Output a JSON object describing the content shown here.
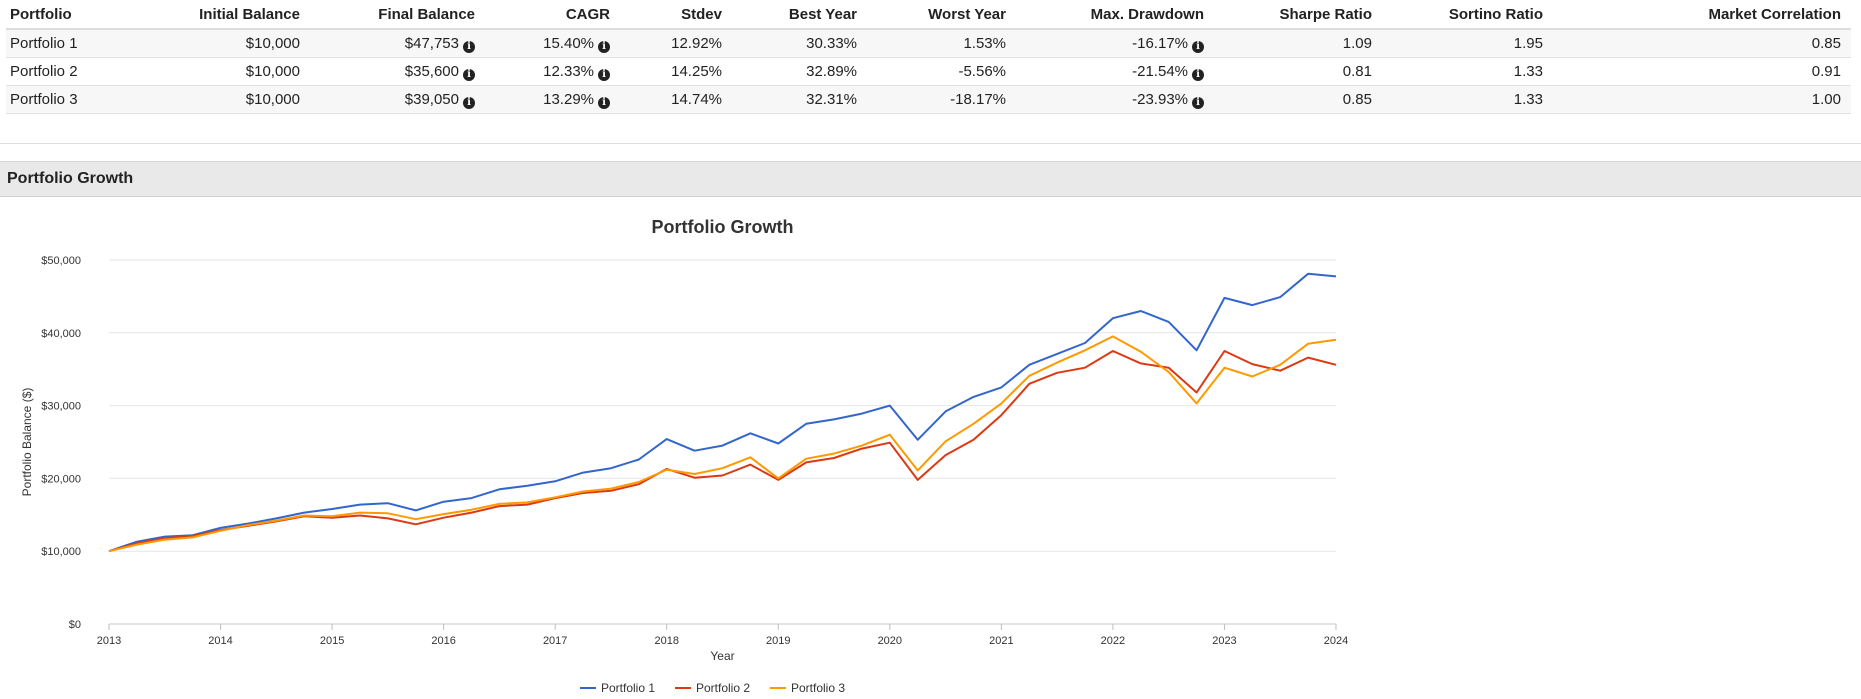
{
  "summary_table": {
    "headers": [
      "Portfolio",
      "Initial Balance",
      "Final Balance",
      "CAGR",
      "Stdev",
      "Best Year",
      "Worst Year",
      "Max. Drawdown",
      "Sharpe Ratio",
      "Sortino Ratio",
      "Market Correlation"
    ],
    "rows": [
      {
        "portfolio": "Portfolio 1",
        "initial_balance": "$10,000",
        "final_balance": "$47,753",
        "cagr": "15.40%",
        "stdev": "12.92%",
        "best_year": "30.33%",
        "worst_year": "1.53%",
        "max_drawdown": "-16.17%",
        "sharpe": "1.09",
        "sortino": "1.95",
        "market_correlation": "0.85"
      },
      {
        "portfolio": "Portfolio 2",
        "initial_balance": "$10,000",
        "final_balance": "$35,600",
        "cagr": "12.33%",
        "stdev": "14.25%",
        "best_year": "32.89%",
        "worst_year": "-5.56%",
        "max_drawdown": "-21.54%",
        "sharpe": "0.81",
        "sortino": "1.33",
        "market_correlation": "0.91"
      },
      {
        "portfolio": "Portfolio 3",
        "initial_balance": "$10,000",
        "final_balance": "$39,050",
        "cagr": "13.29%",
        "stdev": "14.74%",
        "best_year": "32.31%",
        "worst_year": "-18.17%",
        "max_drawdown": "-23.93%",
        "sharpe": "0.85",
        "sortino": "1.33",
        "market_correlation": "1.00"
      }
    ],
    "info_icon": "info-circle-icon"
  },
  "section": {
    "title": "Portfolio Growth"
  },
  "chart_data": {
    "type": "line",
    "title": "Portfolio Growth",
    "xlabel": "Year",
    "ylabel": "Portfolio Balance ($)",
    "x_ticks": [
      "2013",
      "2014",
      "2015",
      "2016",
      "2017",
      "2018",
      "2019",
      "2020",
      "2021",
      "2022",
      "2023",
      "2024"
    ],
    "xlim": [
      2013,
      2024
    ],
    "y_ticks": [
      "$0",
      "$10,000",
      "$20,000",
      "$30,000",
      "$40,000",
      "$50,000"
    ],
    "ylim": [
      0,
      50000
    ],
    "grid": true,
    "legend_position": "bottom-center",
    "series": [
      {
        "name": "Portfolio 1",
        "color": "#3366cc",
        "points": [
          [
            2013.0,
            10000
          ],
          [
            2013.25,
            11300
          ],
          [
            2013.5,
            12000
          ],
          [
            2013.75,
            12200
          ],
          [
            2014.0,
            13200
          ],
          [
            2014.25,
            13800
          ],
          [
            2014.5,
            14500
          ],
          [
            2014.75,
            15300
          ],
          [
            2015.0,
            15800
          ],
          [
            2015.25,
            16400
          ],
          [
            2015.5,
            16600
          ],
          [
            2015.75,
            15600
          ],
          [
            2016.0,
            16800
          ],
          [
            2016.25,
            17300
          ],
          [
            2016.5,
            18500
          ],
          [
            2016.75,
            19000
          ],
          [
            2017.0,
            19600
          ],
          [
            2017.25,
            20800
          ],
          [
            2017.5,
            21400
          ],
          [
            2017.75,
            22600
          ],
          [
            2018.0,
            25400
          ],
          [
            2018.25,
            23800
          ],
          [
            2018.5,
            24500
          ],
          [
            2018.75,
            26200
          ],
          [
            2019.0,
            24800
          ],
          [
            2019.25,
            27500
          ],
          [
            2019.5,
            28100
          ],
          [
            2019.75,
            28900
          ],
          [
            2020.0,
            30000
          ],
          [
            2020.25,
            25300
          ],
          [
            2020.5,
            29200
          ],
          [
            2020.75,
            31200
          ],
          [
            2021.0,
            32500
          ],
          [
            2021.25,
            35600
          ],
          [
            2021.5,
            37100
          ],
          [
            2021.75,
            38600
          ],
          [
            2022.0,
            42000
          ],
          [
            2022.25,
            43000
          ],
          [
            2022.5,
            41500
          ],
          [
            2022.75,
            37600
          ],
          [
            2023.0,
            44800
          ],
          [
            2023.25,
            43800
          ],
          [
            2023.5,
            44900
          ],
          [
            2023.75,
            48100
          ],
          [
            2024.0,
            47753
          ]
        ]
      },
      {
        "name": "Portfolio 2",
        "color": "#dc3912",
        "points": [
          [
            2013.0,
            10000
          ],
          [
            2013.25,
            11100
          ],
          [
            2013.5,
            11800
          ],
          [
            2013.75,
            12100
          ],
          [
            2014.0,
            12900
          ],
          [
            2014.25,
            13500
          ],
          [
            2014.5,
            14100
          ],
          [
            2014.75,
            14800
          ],
          [
            2015.0,
            14600
          ],
          [
            2015.25,
            14900
          ],
          [
            2015.5,
            14500
          ],
          [
            2015.75,
            13700
          ],
          [
            2016.0,
            14600
          ],
          [
            2016.25,
            15300
          ],
          [
            2016.5,
            16200
          ],
          [
            2016.75,
            16400
          ],
          [
            2017.0,
            17300
          ],
          [
            2017.25,
            18000
          ],
          [
            2017.5,
            18300
          ],
          [
            2017.75,
            19200
          ],
          [
            2018.0,
            21300
          ],
          [
            2018.25,
            20100
          ],
          [
            2018.5,
            20400
          ],
          [
            2018.75,
            21900
          ],
          [
            2019.0,
            19800
          ],
          [
            2019.25,
            22200
          ],
          [
            2019.5,
            22800
          ],
          [
            2019.75,
            24100
          ],
          [
            2020.0,
            24900
          ],
          [
            2020.25,
            19800
          ],
          [
            2020.5,
            23200
          ],
          [
            2020.75,
            25300
          ],
          [
            2021.0,
            28700
          ],
          [
            2021.25,
            33000
          ],
          [
            2021.5,
            34500
          ],
          [
            2021.75,
            35200
          ],
          [
            2022.0,
            37500
          ],
          [
            2022.25,
            35800
          ],
          [
            2022.5,
            35200
          ],
          [
            2022.75,
            31800
          ],
          [
            2023.0,
            37500
          ],
          [
            2023.25,
            35700
          ],
          [
            2023.5,
            34800
          ],
          [
            2023.75,
            36600
          ],
          [
            2024.0,
            35600
          ]
        ]
      },
      {
        "name": "Portfolio 3",
        "color": "#ff9900",
        "points": [
          [
            2013.0,
            10000
          ],
          [
            2013.25,
            10900
          ],
          [
            2013.5,
            11600
          ],
          [
            2013.75,
            11900
          ],
          [
            2014.0,
            12800
          ],
          [
            2014.25,
            13600
          ],
          [
            2014.5,
            14200
          ],
          [
            2014.75,
            14900
          ],
          [
            2015.0,
            14800
          ],
          [
            2015.25,
            15300
          ],
          [
            2015.5,
            15200
          ],
          [
            2015.75,
            14400
          ],
          [
            2016.0,
            15100
          ],
          [
            2016.25,
            15700
          ],
          [
            2016.5,
            16500
          ],
          [
            2016.75,
            16700
          ],
          [
            2017.0,
            17400
          ],
          [
            2017.25,
            18200
          ],
          [
            2017.5,
            18600
          ],
          [
            2017.75,
            19500
          ],
          [
            2018.0,
            21200
          ],
          [
            2018.25,
            20600
          ],
          [
            2018.5,
            21400
          ],
          [
            2018.75,
            22900
          ],
          [
            2019.0,
            20000
          ],
          [
            2019.25,
            22700
          ],
          [
            2019.5,
            23400
          ],
          [
            2019.75,
            24500
          ],
          [
            2020.0,
            26000
          ],
          [
            2020.25,
            21100
          ],
          [
            2020.5,
            25100
          ],
          [
            2020.75,
            27500
          ],
          [
            2021.0,
            30300
          ],
          [
            2021.25,
            34100
          ],
          [
            2021.5,
            35900
          ],
          [
            2021.75,
            37600
          ],
          [
            2022.0,
            39500
          ],
          [
            2022.25,
            37400
          ],
          [
            2022.5,
            34600
          ],
          [
            2022.75,
            30300
          ],
          [
            2023.0,
            35200
          ],
          [
            2023.25,
            34000
          ],
          [
            2023.5,
            35600
          ],
          [
            2023.75,
            38500
          ],
          [
            2024.0,
            39050
          ]
        ]
      }
    ]
  }
}
